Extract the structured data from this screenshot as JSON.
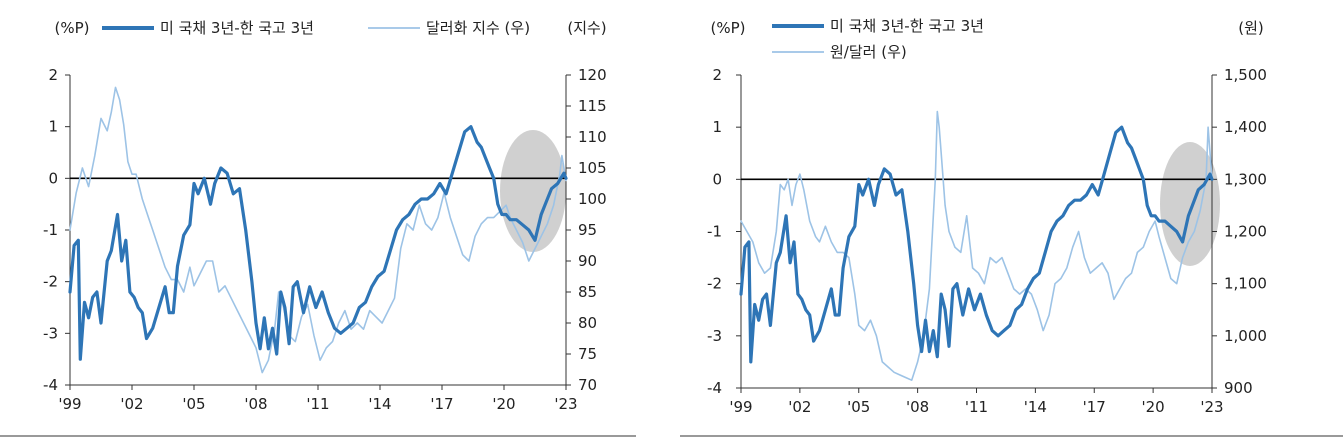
{
  "chart_data": [
    {
      "type": "line",
      "left_unit": "(%P)",
      "right_unit": "(지수)",
      "legend": [
        {
          "label": "미 국채 3년-한 국고 3년",
          "style": "thick",
          "color": "#2E75B6"
        },
        {
          "label": "달러화 지수 (우)",
          "style": "thin",
          "color": "#9DC3E6"
        }
      ],
      "x_ticks": [
        "'99",
        "'02",
        "'05",
        "'08",
        "'11",
        "'14",
        "'17",
        "'20",
        "'23"
      ],
      "xlim": [
        1999,
        2023
      ],
      "left_ticks": [
        "2",
        "1",
        "0",
        "-1",
        "-2",
        "-3",
        "-4"
      ],
      "ylim_left": [
        -4,
        2
      ],
      "right_ticks": [
        "120",
        "115",
        "110",
        "105",
        "100",
        "95",
        "90",
        "85",
        "80",
        "75",
        "70"
      ],
      "ylim_right": [
        70,
        120
      ],
      "series": [
        {
          "name": "미 국채 3년-한 국고 3년",
          "axis": "left",
          "x": [
            1999.0,
            1999.2,
            1999.4,
            1999.5,
            1999.7,
            1999.9,
            2000.1,
            2000.3,
            2000.5,
            2000.8,
            2001.0,
            2001.3,
            2001.5,
            2001.7,
            2001.9,
            2002.1,
            2002.3,
            2002.5,
            2002.7,
            2003.0,
            2003.3,
            2003.6,
            2003.8,
            2004.0,
            2004.2,
            2004.5,
            2004.8,
            2005.0,
            2005.2,
            2005.5,
            2005.8,
            2006.0,
            2006.3,
            2006.6,
            2006.9,
            2007.2,
            2007.5,
            2007.8,
            2008.0,
            2008.2,
            2008.4,
            2008.6,
            2008.8,
            2009.0,
            2009.2,
            2009.4,
            2009.6,
            2009.8,
            2010.0,
            2010.3,
            2010.6,
            2010.9,
            2011.2,
            2011.5,
            2011.8,
            2012.1,
            2012.4,
            2012.7,
            2013.0,
            2013.3,
            2013.6,
            2013.9,
            2014.2,
            2014.5,
            2014.8,
            2015.1,
            2015.4,
            2015.7,
            2016.0,
            2016.3,
            2016.6,
            2016.9,
            2017.2,
            2017.5,
            2017.8,
            2018.1,
            2018.4,
            2018.7,
            2018.9,
            2019.1,
            2019.3,
            2019.5,
            2019.7,
            2019.9,
            2020.1,
            2020.3,
            2020.6,
            2020.9,
            2021.2,
            2021.5,
            2021.8,
            2022.0,
            2022.3,
            2022.6,
            2022.9,
            2023.0
          ],
          "y": [
            -2.2,
            -1.3,
            -1.2,
            -3.5,
            -2.4,
            -2.7,
            -2.3,
            -2.2,
            -2.8,
            -1.6,
            -1.4,
            -0.7,
            -1.6,
            -1.2,
            -2.2,
            -2.3,
            -2.5,
            -2.6,
            -3.1,
            -2.9,
            -2.5,
            -2.1,
            -2.6,
            -2.6,
            -1.7,
            -1.1,
            -0.9,
            -0.1,
            -0.3,
            0.0,
            -0.5,
            -0.1,
            0.2,
            0.1,
            -0.3,
            -0.2,
            -1.0,
            -2.0,
            -2.8,
            -3.3,
            -2.7,
            -3.3,
            -2.9,
            -3.4,
            -2.2,
            -2.5,
            -3.2,
            -2.1,
            -2.0,
            -2.6,
            -2.1,
            -2.5,
            -2.2,
            -2.6,
            -2.9,
            -3.0,
            -2.9,
            -2.8,
            -2.5,
            -2.4,
            -2.1,
            -1.9,
            -1.8,
            -1.4,
            -1.0,
            -0.8,
            -0.7,
            -0.5,
            -0.4,
            -0.4,
            -0.3,
            -0.1,
            -0.3,
            0.1,
            0.5,
            0.9,
            1.0,
            0.7,
            0.6,
            0.4,
            0.2,
            0.0,
            -0.5,
            -0.7,
            -0.7,
            -0.8,
            -0.8,
            -0.9,
            -1.0,
            -1.2,
            -0.7,
            -0.5,
            -0.2,
            -0.1,
            0.1,
            0.0
          ]
        },
        {
          "name": "달러화 지수 (우)",
          "axis": "right",
          "x": [
            1999.0,
            1999.3,
            1999.6,
            1999.9,
            2000.2,
            2000.5,
            2000.8,
            2001.0,
            2001.2,
            2001.4,
            2001.6,
            2001.8,
            2002.0,
            2002.2,
            2002.5,
            2002.8,
            2003.0,
            2003.3,
            2003.6,
            2003.9,
            2004.2,
            2004.5,
            2004.8,
            2005.0,
            2005.3,
            2005.6,
            2005.9,
            2006.2,
            2006.5,
            2006.8,
            2007.1,
            2007.4,
            2007.7,
            2008.0,
            2008.3,
            2008.6,
            2008.9,
            2009.1,
            2009.3,
            2009.6,
            2009.9,
            2010.2,
            2010.5,
            2010.8,
            2011.1,
            2011.4,
            2011.7,
            2012.0,
            2012.3,
            2012.6,
            2012.9,
            2013.2,
            2013.5,
            2013.8,
            2014.1,
            2014.4,
            2014.7,
            2015.0,
            2015.3,
            2015.6,
            2015.9,
            2016.2,
            2016.5,
            2016.8,
            2017.1,
            2017.4,
            2017.7,
            2018.0,
            2018.3,
            2018.6,
            2018.9,
            2019.2,
            2019.5,
            2019.8,
            2020.1,
            2020.3,
            2020.6,
            2020.9,
            2021.2,
            2021.5,
            2021.8,
            2022.1,
            2022.4,
            2022.7,
            2022.8,
            2023.0
          ],
          "y": [
            95,
            101,
            105,
            102,
            107,
            113,
            111,
            114,
            118,
            116,
            112,
            106,
            104,
            104,
            100,
            97,
            95,
            92,
            89,
            87,
            87,
            85,
            89,
            86,
            88,
            90,
            90,
            85,
            86,
            84,
            82,
            80,
            78,
            76,
            72,
            74,
            79,
            85,
            83,
            78,
            77,
            81,
            83,
            78,
            74,
            76,
            77,
            80,
            82,
            79,
            80,
            79,
            82,
            81,
            80,
            82,
            84,
            92,
            96,
            95,
            99,
            96,
            95,
            97,
            101,
            97,
            94,
            91,
            90,
            94,
            96,
            97,
            97,
            98,
            99,
            97,
            95,
            93,
            90,
            92,
            94,
            96,
            99,
            104,
            107,
            103
          ]
        }
      ]
    },
    {
      "type": "line",
      "left_unit": "(%P)",
      "right_unit": "(원)",
      "legend": [
        {
          "label": "미 국채 3년-한 국고 3년",
          "style": "thick",
          "color": "#2E75B6"
        },
        {
          "label": "원/달러 (우)",
          "style": "thin",
          "color": "#9DC3E6"
        }
      ],
      "x_ticks": [
        "'99",
        "'02",
        "'05",
        "'08",
        "'11",
        "'14",
        "'17",
        "'20",
        "'23"
      ],
      "xlim": [
        1999,
        2023
      ],
      "left_ticks": [
        "2",
        "1",
        "0",
        "-1",
        "-2",
        "-3",
        "-4"
      ],
      "ylim_left": [
        -4,
        2
      ],
      "right_ticks": [
        "1,500",
        "1,400",
        "1,300",
        "1,200",
        "1,100",
        "1,000",
        "900"
      ],
      "ylim_right": [
        900,
        1500
      ],
      "series": [
        {
          "name": "미 국채 3년-한 국고 3년",
          "axis": "left",
          "x": [
            1999.0,
            1999.2,
            1999.4,
            1999.5,
            1999.7,
            1999.9,
            2000.1,
            2000.3,
            2000.5,
            2000.8,
            2001.0,
            2001.3,
            2001.5,
            2001.7,
            2001.9,
            2002.1,
            2002.3,
            2002.5,
            2002.7,
            2003.0,
            2003.3,
            2003.6,
            2003.8,
            2004.0,
            2004.2,
            2004.5,
            2004.8,
            2005.0,
            2005.2,
            2005.5,
            2005.8,
            2006.0,
            2006.3,
            2006.6,
            2006.9,
            2007.2,
            2007.5,
            2007.8,
            2008.0,
            2008.2,
            2008.4,
            2008.6,
            2008.8,
            2009.0,
            2009.2,
            2009.4,
            2009.6,
            2009.8,
            2010.0,
            2010.3,
            2010.6,
            2010.9,
            2011.2,
            2011.5,
            2011.8,
            2012.1,
            2012.4,
            2012.7,
            2013.0,
            2013.3,
            2013.6,
            2013.9,
            2014.2,
            2014.5,
            2014.8,
            2015.1,
            2015.4,
            2015.7,
            2016.0,
            2016.3,
            2016.6,
            2016.9,
            2017.2,
            2017.5,
            2017.8,
            2018.1,
            2018.4,
            2018.7,
            2018.9,
            2019.1,
            2019.3,
            2019.5,
            2019.7,
            2019.9,
            2020.1,
            2020.3,
            2020.6,
            2020.9,
            2021.2,
            2021.5,
            2021.8,
            2022.0,
            2022.3,
            2022.6,
            2022.9,
            2023.0
          ],
          "y": [
            -2.2,
            -1.3,
            -1.2,
            -3.5,
            -2.4,
            -2.7,
            -2.3,
            -2.2,
            -2.8,
            -1.6,
            -1.4,
            -0.7,
            -1.6,
            -1.2,
            -2.2,
            -2.3,
            -2.5,
            -2.6,
            -3.1,
            -2.9,
            -2.5,
            -2.1,
            -2.6,
            -2.6,
            -1.7,
            -1.1,
            -0.9,
            -0.1,
            -0.3,
            0.0,
            -0.5,
            -0.1,
            0.2,
            0.1,
            -0.3,
            -0.2,
            -1.0,
            -2.0,
            -2.8,
            -3.3,
            -2.7,
            -3.3,
            -2.9,
            -3.4,
            -2.2,
            -2.5,
            -3.2,
            -2.1,
            -2.0,
            -2.6,
            -2.1,
            -2.5,
            -2.2,
            -2.6,
            -2.9,
            -3.0,
            -2.9,
            -2.8,
            -2.5,
            -2.4,
            -2.1,
            -1.9,
            -1.8,
            -1.4,
            -1.0,
            -0.8,
            -0.7,
            -0.5,
            -0.4,
            -0.4,
            -0.3,
            -0.1,
            -0.3,
            0.1,
            0.5,
            0.9,
            1.0,
            0.7,
            0.6,
            0.4,
            0.2,
            0.0,
            -0.5,
            -0.7,
            -0.7,
            -0.8,
            -0.8,
            -0.9,
            -1.0,
            -1.2,
            -0.7,
            -0.5,
            -0.2,
            -0.1,
            0.1,
            0.0
          ]
        },
        {
          "name": "원/달러 (우)",
          "axis": "right",
          "x": [
            1999.0,
            1999.3,
            1999.6,
            1999.9,
            2000.2,
            2000.5,
            2000.8,
            2001.0,
            2001.2,
            2001.4,
            2001.6,
            2001.8,
            2002.0,
            2002.2,
            2002.5,
            2002.8,
            2003.0,
            2003.3,
            2003.6,
            2003.9,
            2004.2,
            2004.5,
            2004.8,
            2005.0,
            2005.3,
            2005.6,
            2005.9,
            2006.2,
            2006.5,
            2006.8,
            2007.1,
            2007.4,
            2007.7,
            2008.0,
            2008.3,
            2008.6,
            2008.9,
            2009.0,
            2009.1,
            2009.2,
            2009.4,
            2009.6,
            2009.9,
            2010.2,
            2010.5,
            2010.8,
            2011.1,
            2011.4,
            2011.7,
            2012.0,
            2012.3,
            2012.6,
            2012.9,
            2013.2,
            2013.5,
            2013.8,
            2014.1,
            2014.4,
            2014.7,
            2015.0,
            2015.3,
            2015.6,
            2015.9,
            2016.2,
            2016.5,
            2016.8,
            2017.1,
            2017.4,
            2017.7,
            2018.0,
            2018.3,
            2018.6,
            2018.9,
            2019.2,
            2019.5,
            2019.8,
            2020.1,
            2020.3,
            2020.6,
            2020.9,
            2021.2,
            2021.5,
            2021.8,
            2022.1,
            2022.4,
            2022.7,
            2022.8,
            2023.0
          ],
          "y": [
            1220,
            1200,
            1180,
            1140,
            1120,
            1130,
            1200,
            1290,
            1280,
            1300,
            1250,
            1290,
            1310,
            1280,
            1220,
            1190,
            1180,
            1210,
            1180,
            1160,
            1160,
            1150,
            1080,
            1020,
            1010,
            1030,
            1000,
            950,
            940,
            930,
            925,
            920,
            915,
            950,
            1000,
            1090,
            1300,
            1430,
            1400,
            1350,
            1250,
            1200,
            1170,
            1160,
            1230,
            1130,
            1120,
            1100,
            1150,
            1140,
            1150,
            1120,
            1090,
            1080,
            1090,
            1080,
            1050,
            1010,
            1040,
            1100,
            1110,
            1130,
            1170,
            1200,
            1150,
            1120,
            1130,
            1140,
            1120,
            1070,
            1090,
            1110,
            1120,
            1160,
            1170,
            1200,
            1220,
            1190,
            1150,
            1110,
            1100,
            1150,
            1180,
            1200,
            1240,
            1300,
            1400,
            1300
          ]
        }
      ]
    }
  ]
}
